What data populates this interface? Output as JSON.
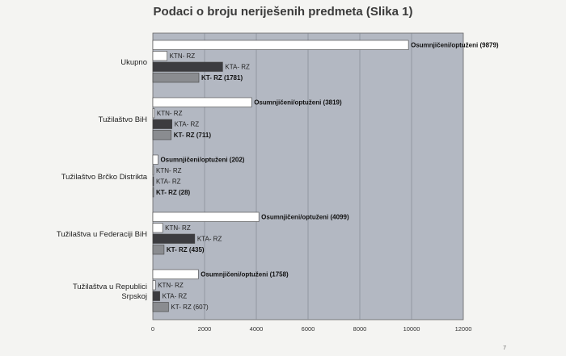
{
  "page_number": "7",
  "chart_data": {
    "type": "bar",
    "orientation": "horizontal",
    "title": "Podaci o broju neriješenih predmeta (Slika 1)",
    "xlim": [
      0,
      12000
    ],
    "x_ticks": [
      0,
      2000,
      4000,
      6000,
      8000,
      10000,
      12000
    ],
    "grid": true,
    "plot_background": "#b3b8c2",
    "categories": [
      {
        "name": "Ukupno",
        "bars": [
          {
            "label": "Osumnjičeni/optuženi (9879)",
            "value": 9879,
            "color": "#ffffff",
            "bold": true
          },
          {
            "label": "KTN- RZ",
            "value": 550,
            "color": "#ffffff",
            "bold": false
          },
          {
            "label": "KTA- RZ",
            "value": 2700,
            "color": "#3c3c40",
            "bold": false
          },
          {
            "label": "KT- RZ (1781)",
            "value": 1781,
            "color": "#8a8c90",
            "bold": true
          }
        ]
      },
      {
        "name": "Tužilaštvo BiH",
        "bars": [
          {
            "label": "Osumnjičeni/optuženi (3819)",
            "value": 3819,
            "color": "#ffffff",
            "bold": true
          },
          {
            "label": "KTN- RZ",
            "value": 60,
            "color": "#ffffff",
            "bold": false
          },
          {
            "label": "KTA- RZ",
            "value": 740,
            "color": "#3c3c40",
            "bold": false
          },
          {
            "label": "KT- RZ (711)",
            "value": 711,
            "color": "#8a8c90",
            "bold": true
          }
        ]
      },
      {
        "name": "Tužilaštvo Brčko Distrikta",
        "bars": [
          {
            "label": "Osumnjičeni/optuženi (202)",
            "value": 202,
            "color": "#ffffff",
            "bold": true
          },
          {
            "label": "KTN- RZ",
            "value": 10,
            "color": "#ffffff",
            "bold": false
          },
          {
            "label": "KTA- RZ",
            "value": 5,
            "color": "#3c3c40",
            "bold": false
          },
          {
            "label": "KT- RZ (28)",
            "value": 28,
            "color": "#8a8c90",
            "bold": true
          }
        ]
      },
      {
        "name": "Tužilaštva u Federaciji BiH",
        "bars": [
          {
            "label": "Osumnjičeni/optuženi (4099)",
            "value": 4099,
            "color": "#ffffff",
            "bold": true
          },
          {
            "label": "KTN- RZ",
            "value": 380,
            "color": "#ffffff",
            "bold": false
          },
          {
            "label": "KTA- RZ",
            "value": 1620,
            "color": "#3c3c40",
            "bold": false
          },
          {
            "label": "KT- RZ (435)",
            "value": 435,
            "color": "#8a8c90",
            "bold": true
          }
        ]
      },
      {
        "name": "Tužilaštva u Republici Srpskoj",
        "bars": [
          {
            "label": "Osumnjičeni/optuženi (1758)",
            "value": 1758,
            "color": "#ffffff",
            "bold": true
          },
          {
            "label": "KTN- RZ",
            "value": 100,
            "color": "#ffffff",
            "bold": false
          },
          {
            "label": "KTA- RZ",
            "value": 270,
            "color": "#3c3c40",
            "bold": false
          },
          {
            "label": "KT- RZ (607)",
            "value": 607,
            "color": "#8a8c90",
            "bold": false
          }
        ]
      }
    ]
  }
}
